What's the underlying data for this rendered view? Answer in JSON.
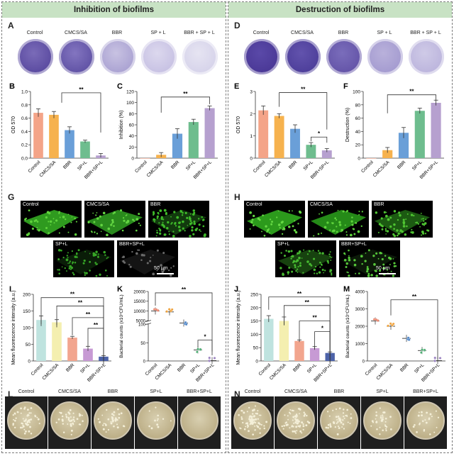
{
  "left": {
    "title": "Inhibition of biofilms",
    "wells_label": "A",
    "wells": [
      "Control",
      "CMCS/SA",
      "BBR",
      "SP + L",
      "BBR + SP + L"
    ],
    "confocal_label": "G",
    "confocal_tags": [
      "Control",
      "CMCS/SA",
      "BBR",
      "SP+L",
      "BBR+SP+L"
    ],
    "scale": "50 μm",
    "plates_label": "L",
    "plates": [
      "Control",
      "CMCS/SA",
      "BBR",
      "SP+L",
      "BBR+SP+L"
    ]
  },
  "right": {
    "title": "Destruction of biofilms",
    "wells_label": "D",
    "wells": [
      "Control",
      "CMCS/SA",
      "BBR",
      "SP + L",
      "BBR + SP + L"
    ],
    "confocal_label": "H",
    "confocal_tags": [
      "Control",
      "CMCS/SA",
      "BBR",
      "SP+L",
      "BBR+SP+L"
    ],
    "scale": "50 μm",
    "plates_label": "N",
    "plates": [
      "Control",
      "CMCS/SA",
      "BBR",
      "SP+L",
      "BBR+SP+L"
    ]
  },
  "colors": {
    "bars": [
      "#f4a488",
      "#f6b24e",
      "#6a9fd8",
      "#6ebd8e",
      "#b6a0cf"
    ],
    "fluor_bars": [
      "#bfe3df",
      "#f4efb0",
      "#f2a58e",
      "#c79ad4",
      "#4d63a8"
    ],
    "banner": "#c8e2c4"
  },
  "chart_data": [
    {
      "panel": "B",
      "type": "bar",
      "categories": [
        "Control",
        "CMCS/SA",
        "BBR",
        "SP+L",
        "BBR+SP+L"
      ],
      "values": [
        0.68,
        0.65,
        0.42,
        0.25,
        0.04
      ],
      "errors": [
        0.06,
        0.05,
        0.05,
        0.02,
        0.03
      ],
      "ylabel": "OD 570",
      "ylim": [
        0,
        1.0
      ],
      "yticks": [
        "0.0",
        "0.2",
        "0.4",
        "0.6",
        "0.8",
        "1.0"
      ],
      "sig": [
        "**"
      ]
    },
    {
      "panel": "C",
      "type": "bar",
      "categories": [
        "Control",
        "CMCS/SA",
        "BBR",
        "SP+L",
        "BBR+SP+L"
      ],
      "values": [
        0,
        6,
        44,
        65,
        90
      ],
      "errors": [
        0,
        4,
        9,
        5,
        4
      ],
      "ylabel": "Inhibition (%)",
      "ylim": [
        0,
        120
      ],
      "yticks": [
        "0",
        "20",
        "40",
        "60",
        "80",
        "100",
        "120"
      ],
      "sig": [
        "**"
      ]
    },
    {
      "panel": "E",
      "type": "bar",
      "categories": [
        "Control",
        "CMCS/SA",
        "BBR",
        "SP+L",
        "BBR+SP+L"
      ],
      "values": [
        2.15,
        1.9,
        1.32,
        0.6,
        0.35
      ],
      "errors": [
        0.2,
        0.1,
        0.18,
        0.1,
        0.08
      ],
      "ylabel": "OD 570",
      "ylim": [
        0,
        3
      ],
      "yticks": [
        "0",
        "1",
        "2",
        "3"
      ],
      "sig": [
        "**",
        "*"
      ]
    },
    {
      "panel": "F",
      "type": "bar",
      "categories": [
        "Control",
        "CMCS/SA",
        "BBR",
        "SP+L",
        "BBR+SP+L"
      ],
      "values": [
        0,
        12,
        38,
        71,
        83
      ],
      "errors": [
        0,
        4,
        8,
        4,
        4
      ],
      "ylabel": "Destruction (%)",
      "ylim": [
        0,
        100
      ],
      "yticks": [
        "0",
        "20",
        "40",
        "60",
        "80",
        "100"
      ],
      "sig": [
        "**"
      ]
    },
    {
      "panel": "I",
      "type": "bar",
      "categories": [
        "Control",
        "CMCS/SA",
        "BBR",
        "SP+L",
        "BBR+SP+L"
      ],
      "values": [
        123,
        116,
        70,
        37,
        13
      ],
      "errors": [
        12,
        8,
        4,
        7,
        3
      ],
      "ylabel": "Mean fluorescence intensity (a.u.)",
      "ylim": [
        0,
        200
      ],
      "yticks": [
        "0",
        "50",
        "100",
        "150",
        "200"
      ],
      "sig": [
        "**",
        "**",
        "**",
        "**"
      ]
    },
    {
      "panel": "K",
      "type": "scatter",
      "categories": [
        "Control",
        "CMCS/SA",
        "BBR",
        "SP+L",
        "BBR+SP+L"
      ],
      "values": [
        10000,
        9500,
        3800,
        30,
        1
      ],
      "ylabel": "Bacterial counts (x10⁷CFU/mL)",
      "yticks": [
        "0",
        "50",
        "100",
        "5000",
        "10000",
        "15000",
        "20000"
      ],
      "sig": [
        "**",
        "*"
      ]
    },
    {
      "panel": "J",
      "type": "bar",
      "categories": [
        "Control",
        "CMCS/SA",
        "BBR",
        "SP+L",
        "BBR+SP+L"
      ],
      "values": [
        158,
        150,
        75,
        48,
        30
      ],
      "errors": [
        12,
        15,
        4,
        6,
        4
      ],
      "ylabel": "Mean fluorescence intensity (a.u.)",
      "ylim": [
        0,
        250
      ],
      "yticks": [
        "0",
        "50",
        "100",
        "150",
        "200",
        "250"
      ],
      "sig": [
        "**",
        "**",
        "**",
        "*"
      ]
    },
    {
      "panel": "M",
      "type": "scatter",
      "categories": [
        "Control",
        "CMCS/SA",
        "BBR",
        "SP+L",
        "BBR+SP+L"
      ],
      "values": [
        2300,
        2000,
        1300,
        600,
        20
      ],
      "ylabel": "Bacterial counts (x10⁷CFU/mL)",
      "ylim": [
        0,
        4000
      ],
      "yticks": [
        "0",
        "1000",
        "2000",
        "3000",
        "4000"
      ],
      "sig": [
        "**"
      ]
    }
  ]
}
